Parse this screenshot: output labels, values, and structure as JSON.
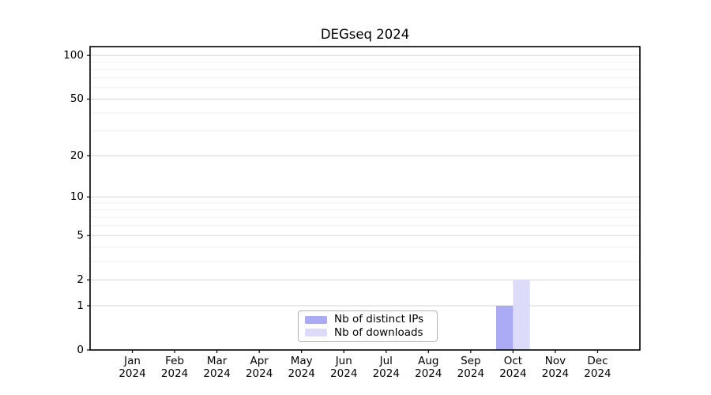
{
  "chart_data": {
    "type": "bar",
    "title": "DEGseq 2024",
    "categories": [
      "Jan",
      "Feb",
      "Mar",
      "Apr",
      "May",
      "Jun",
      "Jul",
      "Aug",
      "Sep",
      "Oct",
      "Nov",
      "Dec"
    ],
    "category_year": "2024",
    "series": [
      {
        "name": "Nb of distinct IPs",
        "color": "#ababf5",
        "values": [
          0,
          0,
          0,
          0,
          0,
          0,
          0,
          0,
          0,
          1,
          0,
          0
        ]
      },
      {
        "name": "Nb of downloads",
        "color": "#dcdcf8",
        "values": [
          0,
          0,
          0,
          0,
          0,
          0,
          0,
          0,
          0,
          2,
          0,
          0
        ]
      }
    ],
    "xlabel": "",
    "ylabel": "",
    "yscale": "log1p",
    "ylim": [
      0,
      115
    ],
    "y_ticks": [
      0,
      1,
      2,
      5,
      10,
      20,
      50,
      100
    ],
    "y_minor_gridlines": [
      3,
      4,
      6,
      7,
      8,
      9,
      30,
      40,
      60,
      70,
      80,
      90
    ],
    "grid": "horizontal",
    "legend_position": "inside-bottom-center",
    "colors": {
      "background": "#ffffff",
      "axis": "#000000",
      "grid_major": "#d6d6d6",
      "grid_minor": "#efefef",
      "legend_border": "#b3b3b3",
      "text": "#000000"
    }
  }
}
